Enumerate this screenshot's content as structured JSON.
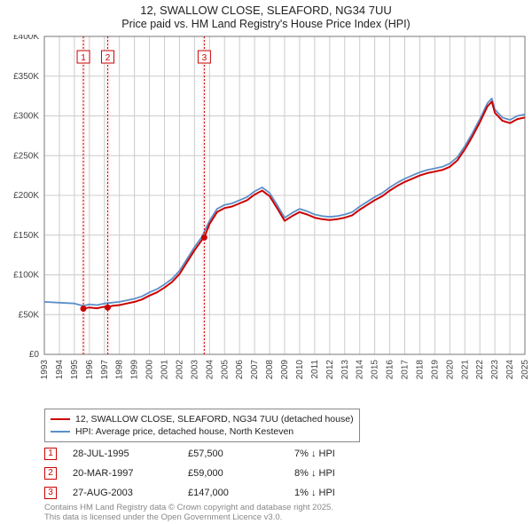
{
  "title_line1": "12, SWALLOW CLOSE, SLEAFORD, NG34 7UU",
  "title_line2": "Price paid vs. HM Land Registry's House Price Index (HPI)",
  "chart": {
    "type": "line",
    "background_color": "#ffffff",
    "gridline_color": "#cccccc",
    "plot_border_color": "#777777",
    "x_start_year": 1993,
    "x_end_year": 2025,
    "x_tick_step": 1,
    "y_min": 0,
    "y_max": 400000,
    "y_tick_step": 50000,
    "y_tick_labels": [
      "£0",
      "£50K",
      "£100K",
      "£150K",
      "£200K",
      "£250K",
      "£300K",
      "£350K",
      "£400K"
    ],
    "axis_label_fontsize": 10,
    "axis_label_color": "#444444",
    "series": [
      {
        "name": "HPI: Average price, detached house, North Kesteven",
        "color": "#5b8fc9",
        "line_width": 1.8,
        "points": [
          [
            1993.0,
            66000
          ],
          [
            1994.0,
            65000
          ],
          [
            1995.0,
            64000
          ],
          [
            1995.6,
            61000
          ],
          [
            1996.0,
            63000
          ],
          [
            1996.5,
            62000
          ],
          [
            1997.0,
            64000
          ],
          [
            1997.5,
            65000
          ],
          [
            1998.0,
            66000
          ],
          [
            1998.5,
            68000
          ],
          [
            1999.0,
            70000
          ],
          [
            1999.5,
            73000
          ],
          [
            2000.0,
            78000
          ],
          [
            2000.5,
            82000
          ],
          [
            2001.0,
            88000
          ],
          [
            2001.5,
            95000
          ],
          [
            2002.0,
            105000
          ],
          [
            2002.5,
            120000
          ],
          [
            2003.0,
            135000
          ],
          [
            2003.5,
            148000
          ],
          [
            2004.0,
            168000
          ],
          [
            2004.5,
            183000
          ],
          [
            2005.0,
            188000
          ],
          [
            2005.5,
            190000
          ],
          [
            2006.0,
            194000
          ],
          [
            2006.5,
            198000
          ],
          [
            2007.0,
            205000
          ],
          [
            2007.5,
            210000
          ],
          [
            2008.0,
            203000
          ],
          [
            2008.5,
            188000
          ],
          [
            2009.0,
            172000
          ],
          [
            2009.5,
            178000
          ],
          [
            2010.0,
            183000
          ],
          [
            2010.5,
            180000
          ],
          [
            2011.0,
            176000
          ],
          [
            2011.5,
            174000
          ],
          [
            2012.0,
            173000
          ],
          [
            2012.5,
            174000
          ],
          [
            2013.0,
            176000
          ],
          [
            2013.5,
            179000
          ],
          [
            2014.0,
            186000
          ],
          [
            2014.5,
            192000
          ],
          [
            2015.0,
            198000
          ],
          [
            2015.5,
            203000
          ],
          [
            2016.0,
            210000
          ],
          [
            2016.5,
            216000
          ],
          [
            2017.0,
            221000
          ],
          [
            2017.5,
            225000
          ],
          [
            2018.0,
            229000
          ],
          [
            2018.5,
            232000
          ],
          [
            2019.0,
            234000
          ],
          [
            2019.5,
            236000
          ],
          [
            2020.0,
            240000
          ],
          [
            2020.5,
            248000
          ],
          [
            2021.0,
            262000
          ],
          [
            2021.5,
            278000
          ],
          [
            2022.0,
            296000
          ],
          [
            2022.5,
            316000
          ],
          [
            2022.8,
            322000
          ],
          [
            2023.0,
            308000
          ],
          [
            2023.5,
            298000
          ],
          [
            2024.0,
            295000
          ],
          [
            2024.5,
            300000
          ],
          [
            2025.0,
            302000
          ]
        ]
      },
      {
        "name": "12, SWALLOW CLOSE, SLEAFORD, NG34 7UU (detached house)",
        "color": "#cc0000",
        "line_width": 2.0,
        "points": [
          [
            1995.6,
            57500
          ],
          [
            1996.0,
            59000
          ],
          [
            1996.5,
            58000
          ],
          [
            1997.0,
            60000
          ],
          [
            1997.22,
            59000
          ],
          [
            1997.5,
            61000
          ],
          [
            1998.0,
            62000
          ],
          [
            1998.5,
            64000
          ],
          [
            1999.0,
            66000
          ],
          [
            1999.5,
            69000
          ],
          [
            2000.0,
            74000
          ],
          [
            2000.5,
            78000
          ],
          [
            2001.0,
            84000
          ],
          [
            2001.5,
            91000
          ],
          [
            2002.0,
            101000
          ],
          [
            2002.5,
            116000
          ],
          [
            2003.0,
            131000
          ],
          [
            2003.5,
            144000
          ],
          [
            2003.65,
            147000
          ],
          [
            2004.0,
            164000
          ],
          [
            2004.5,
            179000
          ],
          [
            2005.0,
            184000
          ],
          [
            2005.5,
            186000
          ],
          [
            2006.0,
            190000
          ],
          [
            2006.5,
            194000
          ],
          [
            2007.0,
            201000
          ],
          [
            2007.5,
            206000
          ],
          [
            2008.0,
            199000
          ],
          [
            2008.5,
            184000
          ],
          [
            2009.0,
            168000
          ],
          [
            2009.5,
            174000
          ],
          [
            2010.0,
            179000
          ],
          [
            2010.5,
            176000
          ],
          [
            2011.0,
            172000
          ],
          [
            2011.5,
            170000
          ],
          [
            2012.0,
            169000
          ],
          [
            2012.5,
            170000
          ],
          [
            2013.0,
            172000
          ],
          [
            2013.5,
            175000
          ],
          [
            2014.0,
            182000
          ],
          [
            2014.5,
            188000
          ],
          [
            2015.0,
            194000
          ],
          [
            2015.5,
            199000
          ],
          [
            2016.0,
            206000
          ],
          [
            2016.5,
            212000
          ],
          [
            2017.0,
            217000
          ],
          [
            2017.5,
            221000
          ],
          [
            2018.0,
            225000
          ],
          [
            2018.5,
            228000
          ],
          [
            2019.0,
            230000
          ],
          [
            2019.5,
            232000
          ],
          [
            2020.0,
            236000
          ],
          [
            2020.5,
            244000
          ],
          [
            2021.0,
            258000
          ],
          [
            2021.5,
            274000
          ],
          [
            2022.0,
            292000
          ],
          [
            2022.5,
            312000
          ],
          [
            2022.8,
            318000
          ],
          [
            2023.0,
            304000
          ],
          [
            2023.5,
            294000
          ],
          [
            2024.0,
            291000
          ],
          [
            2024.5,
            296000
          ],
          [
            2025.0,
            298000
          ]
        ]
      }
    ],
    "transaction_markers": [
      {
        "label": "1",
        "x": 1995.6,
        "y": 57500,
        "band_color": "#cc0000",
        "band_opacity": 0.08
      },
      {
        "label": "2",
        "x": 1997.22,
        "y": 59000,
        "band_color": "#cc0000",
        "band_opacity": 0.08
      },
      {
        "label": "3",
        "x": 2003.65,
        "y": 147000,
        "band_color": "#cc0000",
        "band_opacity": 0.08
      }
    ],
    "marker_box_border": "#cc0000",
    "marker_box_text": "#cc0000",
    "marker_dash_color": "#cc0000",
    "marker_dot_color": "#cc0000"
  },
  "legend": {
    "items": [
      {
        "label": "12, SWALLOW CLOSE, SLEAFORD, NG34 7UU (detached house)",
        "color": "#cc0000"
      },
      {
        "label": "HPI: Average price, detached house, North Kesteven",
        "color": "#5b8fc9"
      }
    ]
  },
  "transactions": [
    {
      "marker": "1",
      "date": "28-JUL-1995",
      "price": "£57,500",
      "delta": "7% ↓ HPI"
    },
    {
      "marker": "2",
      "date": "20-MAR-1997",
      "price": "£59,000",
      "delta": "8% ↓ HPI"
    },
    {
      "marker": "3",
      "date": "27-AUG-2003",
      "price": "£147,000",
      "delta": "1% ↓ HPI"
    }
  ],
  "attribution_line1": "Contains HM Land Registry data © Crown copyright and database right 2025.",
  "attribution_line2": "This data is licensed under the Open Government Licence v3.0."
}
